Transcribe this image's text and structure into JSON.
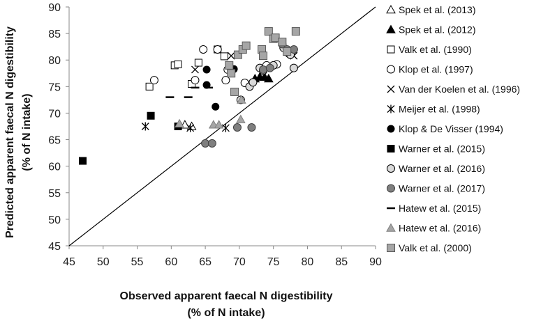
{
  "chart_data": {
    "type": "scatter",
    "xlabel_line1": "Observed apparent faecal N digestibility",
    "xlabel_line2": "(% of N intake)",
    "ylabel_line1": "Predicted apparent faecal N digestibility",
    "ylabel_line2": "(% of N intake)",
    "xlim": [
      45,
      90
    ],
    "ylim": [
      45,
      90
    ],
    "xticks": [
      45,
      50,
      55,
      60,
      65,
      70,
      75,
      80,
      85,
      90
    ],
    "yticks": [
      45,
      50,
      55,
      60,
      65,
      70,
      75,
      80,
      85,
      90
    ],
    "xtick_labels": [
      "45",
      "50",
      "55",
      "60",
      "65",
      "70",
      "75",
      "80",
      "85",
      "90"
    ],
    "ytick_labels": [
      "45",
      "50",
      "55",
      "60",
      "65",
      "70",
      "75",
      "80",
      "85",
      "90"
    ],
    "reference_line": {
      "from": [
        45,
        45
      ],
      "to": [
        90,
        90
      ]
    },
    "series": [
      {
        "name": "Spek et al. (2013)",
        "marker": "triangle-open",
        "points": [
          [
            62,
            67.8
          ],
          [
            63,
            67.5
          ]
        ]
      },
      {
        "name": "Spek et al. (2012)",
        "marker": "triangle-filled",
        "points": [
          [
            72.3,
            76.5
          ],
          [
            73.0,
            76.8
          ],
          [
            73.7,
            76.8
          ],
          [
            74.3,
            76.5
          ]
        ]
      },
      {
        "name": "Valk et al. (1990)",
        "marker": "square-open",
        "points": [
          [
            56.8,
            75
          ],
          [
            60.5,
            79
          ],
          [
            61,
            79.2
          ],
          [
            64,
            79.5
          ],
          [
            63,
            75.5
          ],
          [
            66.8,
            82
          ],
          [
            67.8,
            80.7
          ]
        ]
      },
      {
        "name": "Klop et al. (1997)",
        "marker": "circle-open",
        "points": [
          [
            57.5,
            76.2
          ],
          [
            64.7,
            82
          ],
          [
            66.8,
            82
          ],
          [
            63.5,
            76.2
          ],
          [
            68,
            76.2
          ],
          [
            68.3,
            78.2
          ],
          [
            70.8,
            75.7
          ],
          [
            74,
            79
          ],
          [
            77.3,
            81.2
          ],
          [
            75.5,
            79.2
          ]
        ]
      },
      {
        "name": "Van der Koelen et al. (1996)",
        "marker": "x",
        "points": [
          [
            63.5,
            78.2
          ],
          [
            68.8,
            80.8
          ],
          [
            78,
            80.8
          ]
        ]
      },
      {
        "name": "Meijer et al. (1998)",
        "marker": "asterisk",
        "points": [
          [
            56.2,
            67.5
          ],
          [
            62.8,
            67.2
          ],
          [
            68,
            67.2
          ]
        ]
      },
      {
        "name": "Klop & De Visser (1994)",
        "marker": "circle-filled",
        "points": [
          [
            65.2,
            78.2
          ],
          [
            65.2,
            75.3
          ],
          [
            66.5,
            71.2
          ],
          [
            69.2,
            78.3
          ]
        ]
      },
      {
        "name": "Warner et al. (2015)",
        "marker": "square-filled",
        "points": [
          [
            47,
            61
          ],
          [
            57,
            69.5
          ],
          [
            61,
            67.5
          ]
        ]
      },
      {
        "name": "Warner et al. (2016)",
        "marker": "circle-light",
        "points": [
          [
            70.2,
            72.5
          ],
          [
            71.5,
            75
          ],
          [
            72,
            75.8
          ],
          [
            73,
            78.5
          ],
          [
            73.5,
            78
          ],
          [
            75,
            79
          ],
          [
            76.5,
            82.3
          ],
          [
            77.5,
            81
          ],
          [
            78,
            78.5
          ]
        ]
      },
      {
        "name": "Warner et al. (2017)",
        "marker": "circle-dark",
        "points": [
          [
            65,
            64.3
          ],
          [
            66,
            64.3
          ],
          [
            69.7,
            67.3
          ],
          [
            71.8,
            67.3
          ],
          [
            73.5,
            78.2
          ],
          [
            74.5,
            78.5
          ],
          [
            76.3,
            83
          ],
          [
            77,
            82
          ],
          [
            78,
            82
          ]
        ]
      },
      {
        "name": "Hatew et al. (2015)",
        "marker": "dash",
        "points": [
          [
            59.8,
            73
          ],
          [
            62.5,
            73
          ],
          [
            63.5,
            74.8
          ],
          [
            65.5,
            74.8
          ]
        ]
      },
      {
        "name": "Hatew et al. (2016)",
        "marker": "triangle-gray",
        "points": [
          [
            61.2,
            68
          ],
          [
            66.2,
            67.8
          ],
          [
            67,
            67.8
          ],
          [
            70.2,
            68.8
          ],
          [
            70.3,
            72.5
          ]
        ]
      },
      {
        "name": "Valk et al. (2000)",
        "marker": "square-gray",
        "points": [
          [
            68.5,
            79
          ],
          [
            68.8,
            77.5
          ],
          [
            69.3,
            74
          ],
          [
            69.8,
            81
          ],
          [
            70.5,
            82
          ],
          [
            71,
            82.7
          ],
          [
            73.3,
            82
          ],
          [
            73.5,
            80.8
          ],
          [
            74.3,
            85.4
          ],
          [
            75,
            84
          ],
          [
            75.3,
            84.2
          ],
          [
            76.3,
            83.4
          ],
          [
            77,
            81.6
          ],
          [
            78.3,
            85.4
          ]
        ]
      }
    ]
  }
}
